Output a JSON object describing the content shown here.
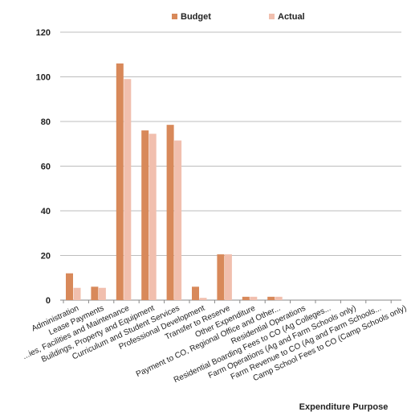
{
  "chart_data": {
    "type": "bar",
    "title": "",
    "xlabel": "Expenditure Purpose",
    "ylabel": "",
    "ylim": [
      0,
      120
    ],
    "yticks": [
      0,
      20,
      40,
      60,
      80,
      100,
      120
    ],
    "grid": true,
    "legend_position": "top",
    "categories": [
      "Administration",
      "Lease Payments",
      "...ies, Facilities and Maintenance",
      "Buildings, Property and Equipment",
      "Curriculum and Student Services",
      "Professional Development",
      "Transfer to Reserve",
      "Other Expenditure",
      "Payment to CO, Regional Office and Other...",
      "Residential Operations",
      "Residential Boarding Fees to CO (Ag Colleges...",
      "Farm Operations (Ag and Farm Schools only)",
      "Farm Revenue to CO (Ag and Farm Schools...",
      "Camp School Fees to CO (Camp Schools only)"
    ],
    "series": [
      {
        "name": "Budget",
        "color": "#d8895a",
        "values": [
          12,
          6,
          106,
          76,
          78.5,
          6,
          20.5,
          1.5,
          1.5,
          0,
          0,
          0,
          0,
          0
        ]
      },
      {
        "name": "Actual",
        "color": "#f1bfae",
        "values": [
          5.5,
          5.5,
          99,
          74.5,
          71.5,
          1,
          20.5,
          1.5,
          1.5,
          0,
          0,
          0,
          0,
          0
        ]
      }
    ]
  }
}
